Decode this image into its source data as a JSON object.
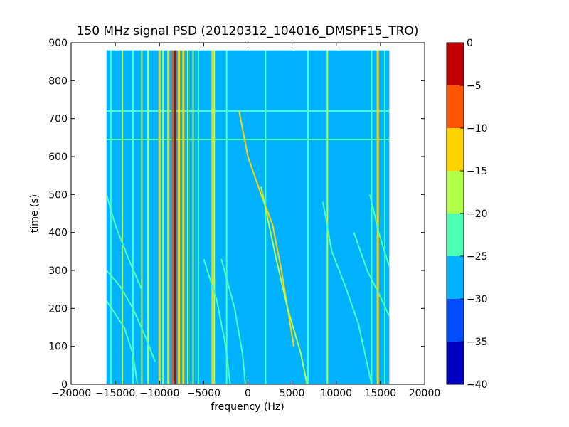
{
  "chart_data": {
    "type": "heatmap",
    "title": "150 MHz signal PSD (20120312_104016_DMSPF15_TRO)",
    "xlabel": "frequency (Hz)",
    "ylabel": "time (s)",
    "xlim": [
      -20000,
      20000
    ],
    "ylim": [
      0,
      900
    ],
    "x_ticks": [
      -20000,
      -15000,
      -10000,
      -5000,
      0,
      5000,
      10000,
      15000,
      20000
    ],
    "x_tick_labels": [
      "−20000",
      "−15000",
      "−10000",
      "−5000",
      "0",
      "5000",
      "10000",
      "15000",
      "20000"
    ],
    "y_ticks": [
      0,
      100,
      200,
      300,
      400,
      500,
      600,
      700,
      800,
      900
    ],
    "y_tick_labels": [
      "0",
      "100",
      "200",
      "300",
      "400",
      "500",
      "600",
      "700",
      "800",
      "900"
    ],
    "data_extent": {
      "x": [
        -16000,
        16000
      ],
      "y": [
        0,
        880
      ]
    },
    "colorbar": {
      "range": [
        -40,
        0
      ],
      "levels": [
        -40,
        -35,
        -30,
        -25,
        -20,
        -15,
        -10,
        -5,
        0
      ],
      "tick_labels": [
        "−40",
        "−35",
        "−30",
        "−25",
        "−20",
        "−15",
        "−10",
        "−5",
        "0"
      ],
      "colors": [
        "#0000bf",
        "#004cff",
        "#00b2ff",
        "#4cffb2",
        "#b2ff4c",
        "#ffd500",
        "#ff5500",
        "#c00000"
      ]
    },
    "background_level_band": [
      -30,
      -25
    ],
    "vertical_lines": [
      {
        "x": -15500,
        "band": 3
      },
      {
        "x": -14200,
        "band": 4
      },
      {
        "x": -13000,
        "band": 3
      },
      {
        "x": -12000,
        "band": 4
      },
      {
        "x": -11300,
        "band": 4
      },
      {
        "x": -10000,
        "band": 5
      },
      {
        "x": -9600,
        "band": 4
      },
      {
        "x": -9000,
        "band": 5
      },
      {
        "x": -8500,
        "band": 6
      },
      {
        "x": -8200,
        "band": 7
      },
      {
        "x": -7800,
        "band": 5
      },
      {
        "x": -7300,
        "band": 5
      },
      {
        "x": -6800,
        "band": 4
      },
      {
        "x": -6200,
        "band": 4
      },
      {
        "x": -5600,
        "band": 3
      },
      {
        "x": -4000,
        "band": 5
      },
      {
        "x": -3800,
        "band": 4
      },
      {
        "x": -2400,
        "band": 3
      },
      {
        "x": 2000,
        "band": 3
      },
      {
        "x": 6800,
        "band": 3
      },
      {
        "x": 9000,
        "band": 4
      },
      {
        "x": 14000,
        "band": 3
      },
      {
        "x": 14700,
        "band": 5
      },
      {
        "x": 15500,
        "band": 3
      }
    ],
    "horizontal_lines": [
      {
        "y": 645,
        "band": 3
      },
      {
        "y": 720,
        "band": 3
      }
    ],
    "sweeping_traces": [
      {
        "points": [
          [
            -1000,
            720
          ],
          [
            0,
            600
          ],
          [
            1500,
            500
          ],
          [
            2800,
            420
          ],
          [
            3800,
            300
          ],
          [
            4500,
            200
          ],
          [
            5200,
            100
          ]
        ],
        "band": 5
      },
      {
        "points": [
          [
            -16000,
            500
          ],
          [
            -15000,
            420
          ],
          [
            -13500,
            330
          ],
          [
            -12000,
            250
          ]
        ],
        "band": 3
      },
      {
        "points": [
          [
            -16000,
            300
          ],
          [
            -14500,
            260
          ],
          [
            -13000,
            200
          ],
          [
            -11500,
            120
          ],
          [
            -10500,
            60
          ]
        ],
        "band": 3
      },
      {
        "points": [
          [
            -16000,
            220
          ],
          [
            -14000,
            150
          ],
          [
            -13000,
            80
          ],
          [
            -12500,
            0
          ]
        ],
        "band": 3
      },
      {
        "points": [
          [
            -5000,
            330
          ],
          [
            -3500,
            220
          ],
          [
            -2500,
            100
          ],
          [
            -2000,
            0
          ]
        ],
        "band": 3
      },
      {
        "points": [
          [
            -3000,
            330
          ],
          [
            -1500,
            200
          ],
          [
            -600,
            80
          ],
          [
            -300,
            0
          ]
        ],
        "band": 3
      },
      {
        "points": [
          [
            1500,
            520
          ],
          [
            3200,
            330
          ],
          [
            4500,
            200
          ],
          [
            6000,
            80
          ],
          [
            6700,
            0
          ]
        ],
        "band": 4
      },
      {
        "points": [
          [
            8500,
            480
          ],
          [
            9500,
            350
          ],
          [
            11000,
            260
          ],
          [
            12500,
            160
          ],
          [
            14000,
            0
          ]
        ],
        "band": 3
      },
      {
        "points": [
          [
            12000,
            400
          ],
          [
            13500,
            300
          ],
          [
            15000,
            230
          ],
          [
            16000,
            180
          ]
        ],
        "band": 3
      },
      {
        "points": [
          [
            13800,
            500
          ],
          [
            14800,
            400
          ],
          [
            16000,
            310
          ]
        ],
        "band": 3
      }
    ]
  }
}
